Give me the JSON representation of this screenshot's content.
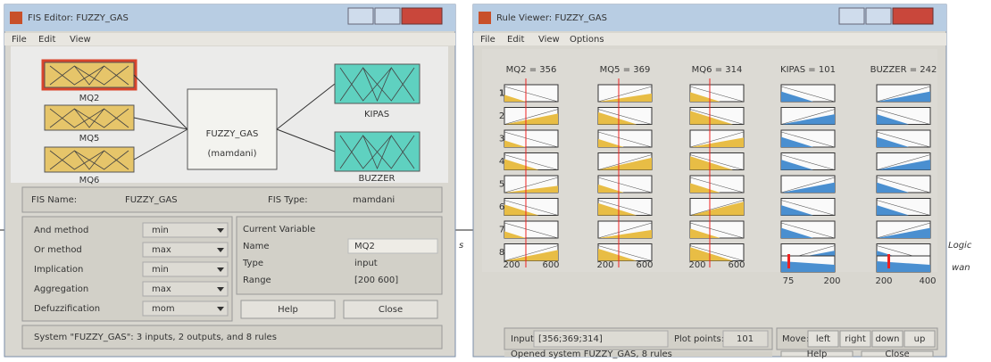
{
  "fis_editor": {
    "title": "FIS Editor: FUZZY_GAS",
    "menu": [
      "File",
      "Edit",
      "View"
    ],
    "inputs": [
      "MQ2",
      "MQ5",
      "MQ6"
    ],
    "system_name": "FUZZY_GAS",
    "system_type": "(mamdani)",
    "outputs": [
      "KIPAS",
      "BUZZER"
    ],
    "fis_name_label": "FIS Name:",
    "fis_name": "FUZZY_GAS",
    "fis_type_label": "FIS Type:",
    "fis_type": "mamdani",
    "methods": [
      {
        "label": "And method",
        "value": "min"
      },
      {
        "label": "Or method",
        "value": "max"
      },
      {
        "label": "Implication",
        "value": "min"
      },
      {
        "label": "Aggregation",
        "value": "max"
      },
      {
        "label": "Defuzzification",
        "value": "mom"
      }
    ],
    "current_variable": {
      "title": "Current Variable",
      "rows": [
        {
          "label": "Name",
          "value": "MQ2"
        },
        {
          "label": "Type",
          "value": "input"
        },
        {
          "label": "Range",
          "value": "[200 600]"
        }
      ]
    },
    "buttons": [
      "Help",
      "Close"
    ],
    "status": "System \"FUZZY_GAS\": 3 inputs, 2 outputs, and 8 rules"
  },
  "rule_viewer": {
    "title": "Rule Viewer: FUZZY_GAS",
    "menu": [
      "File",
      "Edit",
      "View",
      "Options"
    ],
    "columns": [
      {
        "header": "MQ2 = 356",
        "axis": [
          "200",
          "600"
        ]
      },
      {
        "header": "MQ5 = 369",
        "axis": [
          "200",
          "600"
        ]
      },
      {
        "header": "MQ6 = 314",
        "axis": [
          "200",
          "600"
        ]
      },
      {
        "header": "KIPAS = 101",
        "axis": [
          "75",
          "200"
        ]
      },
      {
        "header": "BUZZER = 242",
        "axis": [
          "200",
          "400"
        ]
      }
    ],
    "rules": [
      "1",
      "2",
      "3",
      "4",
      "5",
      "6",
      "7",
      "8"
    ],
    "input_label": "Input:",
    "input": "[356;369;314]",
    "plot_points_label": "Plot points:",
    "plot_points": "101",
    "move_label": "Move:",
    "move_buttons": [
      "left",
      "right",
      "down",
      "up"
    ],
    "buttons": [
      "Help",
      "Close"
    ],
    "status": "Opened system FUZZY_GAS, 8 rules"
  },
  "background_text": [
    "s",
    "Logic",
    "wan"
  ]
}
